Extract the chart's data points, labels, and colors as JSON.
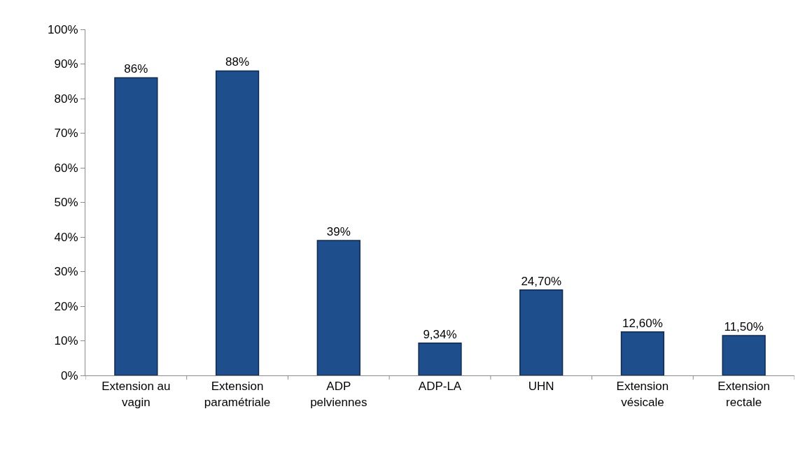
{
  "chart_data": {
    "type": "bar",
    "categories": [
      "Extension au vagin",
      "Extension paramétriale",
      "ADP pelviennes",
      "ADP-LA",
      "UHN",
      "Extension vésicale",
      "Extension rectale"
    ],
    "values": [
      86,
      88,
      39,
      9.34,
      24.7,
      12.6,
      11.5
    ],
    "value_labels": [
      "86%",
      "88%",
      "39%",
      "9,34%",
      "24,70%",
      "12,60%",
      "11,50%"
    ],
    "color": "#1f4e8c",
    "ylim": [
      0,
      100
    ],
    "yticks": [
      {
        "value": 0,
        "label": "0%"
      },
      {
        "value": 10,
        "label": "10%"
      },
      {
        "value": 20,
        "label": "20%"
      },
      {
        "value": 30,
        "label": "30%"
      },
      {
        "value": 40,
        "label": "40%"
      },
      {
        "value": 50,
        "label": "50%"
      },
      {
        "value": 60,
        "label": "60%"
      },
      {
        "value": 70,
        "label": "70%"
      },
      {
        "value": 80,
        "label": "80%"
      },
      {
        "value": 90,
        "label": "90%"
      },
      {
        "value": 100,
        "label": "100%"
      }
    ],
    "grid": false
  }
}
